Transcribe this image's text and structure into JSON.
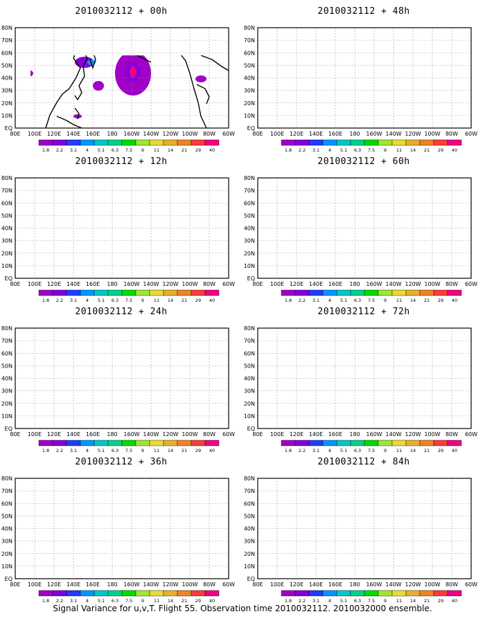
{
  "caption": "Signal Variance for u,v,T. Flight 55. Observation time 2010032112. 2010032000 ensemble.",
  "lat_labels": [
    "80N",
    "70N",
    "60N",
    "50N",
    "40N",
    "30N",
    "20N",
    "10N",
    "EQ"
  ],
  "lon_labels": [
    "80E",
    "100E",
    "120E",
    "140E",
    "160E",
    "180",
    "160W",
    "140W",
    "120W",
    "100W",
    "80W",
    "60W"
  ],
  "colorbar": {
    "labels": [
      "1.8",
      "2.2",
      "3.1",
      "4",
      "5.1",
      "6.3",
      "7.5",
      "9",
      "11",
      "14",
      "21",
      "29",
      "40"
    ],
    "colors": [
      "#a000c8",
      "#8200dc",
      "#1e3cff",
      "#0096ff",
      "#00c8c8",
      "#00d28c",
      "#00dc00",
      "#a0e632",
      "#e6dc32",
      "#e6af2d",
      "#f08228",
      "#fa3c3c",
      "#f00082"
    ]
  },
  "panels": [
    {
      "title": "2010032112 + 00h"
    },
    {
      "title": "2010032112 + 48h"
    },
    {
      "title": "2010032112 + 12h"
    },
    {
      "title": "2010032112 + 60h"
    },
    {
      "title": "2010032112 + 24h"
    },
    {
      "title": "2010032112 + 72h"
    },
    {
      "title": "2010032112 + 36h"
    },
    {
      "title": "2010032112 + 84h"
    }
  ]
}
